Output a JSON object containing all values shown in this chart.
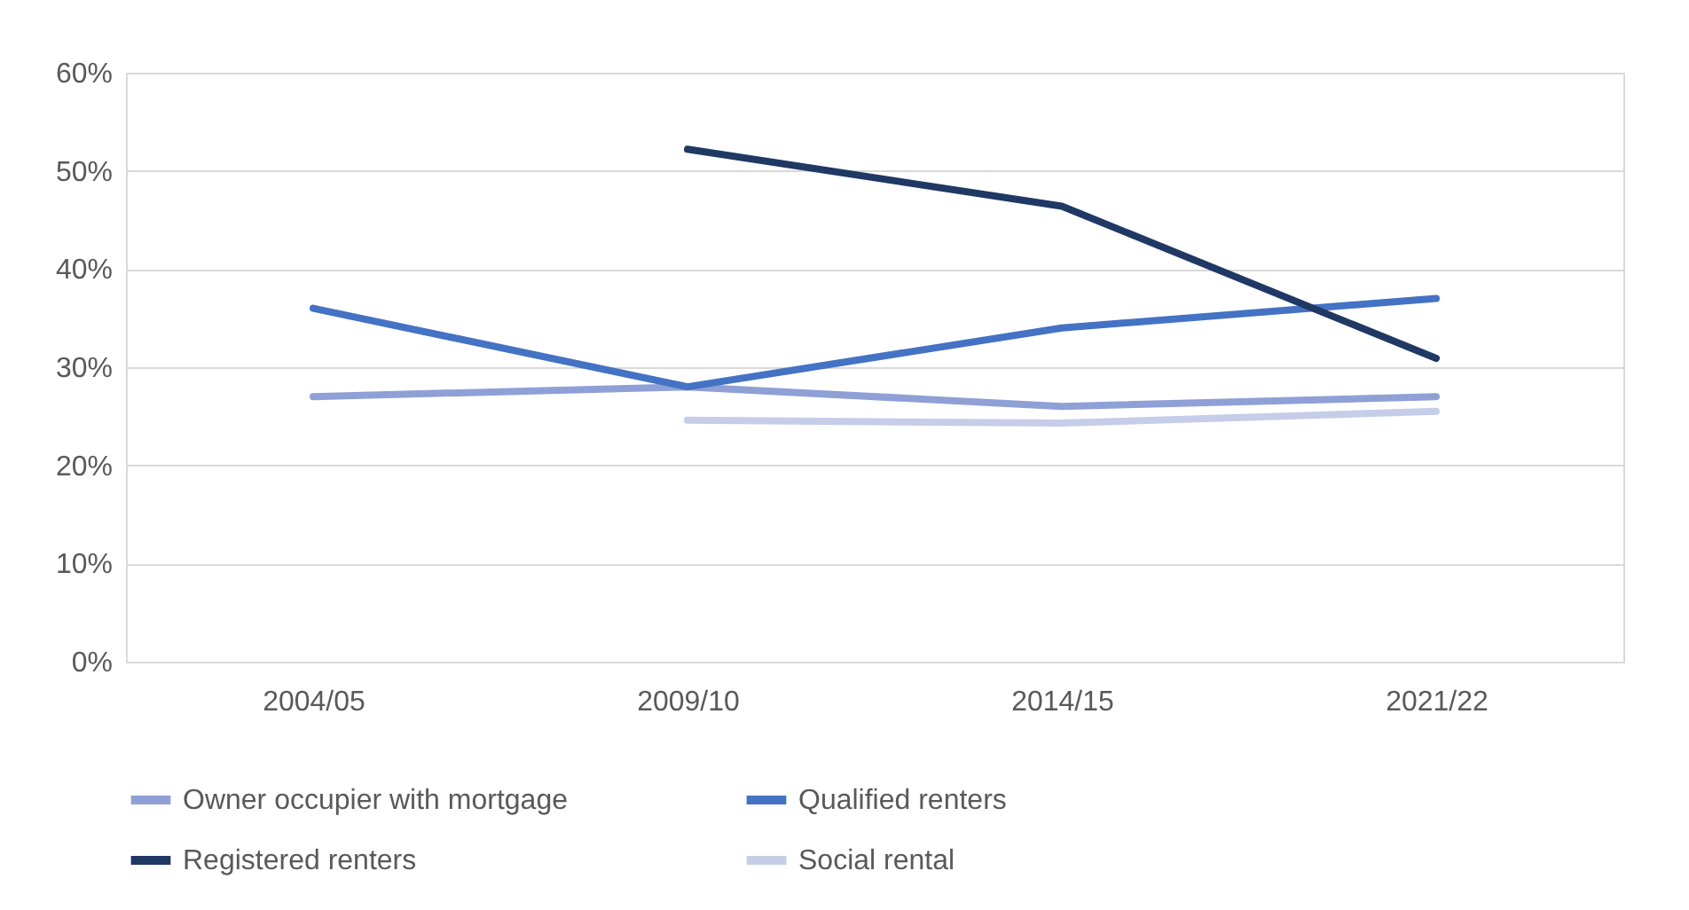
{
  "chart_data": {
    "type": "line",
    "categories": [
      "2004/05",
      "2009/10",
      "2014/15",
      "2021/22"
    ],
    "series": [
      {
        "name": "Owner occupier with mortgage",
        "color": "#8ea0d6",
        "values": [
          27,
          28,
          26,
          27
        ]
      },
      {
        "name": "Qualified renters",
        "color": "#4472c4",
        "values": [
          36,
          28,
          34,
          37
        ]
      },
      {
        "name": "Registered renters",
        "color": "#203864",
        "values": [
          null,
          52.2,
          46.4,
          30.9
        ]
      },
      {
        "name": "Social rental",
        "color": "#c5cde9",
        "values": [
          null,
          24.6,
          24.3,
          25.5
        ]
      }
    ],
    "ylim": [
      0,
      60
    ],
    "yticks": [
      {
        "value": 0,
        "label": "0%"
      },
      {
        "value": 10,
        "label": "10%"
      },
      {
        "value": 20,
        "label": "20%"
      },
      {
        "value": 30,
        "label": "30%"
      },
      {
        "value": 40,
        "label": "40%"
      },
      {
        "value": 50,
        "label": "50%"
      },
      {
        "value": 60,
        "label": "60%"
      }
    ],
    "grid": "y",
    "legend": "bottom",
    "marker": "none",
    "line_style": "solid"
  }
}
